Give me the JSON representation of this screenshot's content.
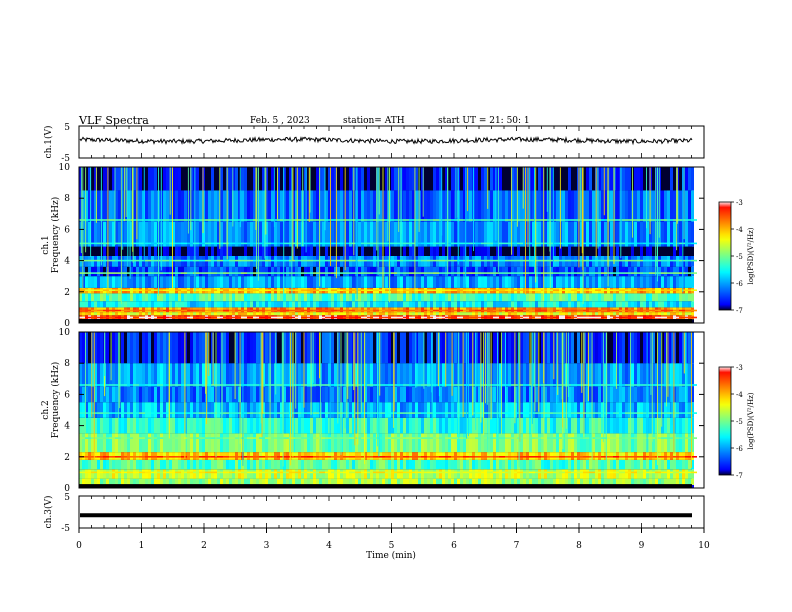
{
  "header": {
    "title": "VLF  Spectra",
    "date": "Feb. 5  , 2023",
    "station": "station= ATH",
    "start": "start  UT  =    21: 50: 1"
  },
  "chart_data": [
    {
      "type": "line",
      "panel": "ch1-waveform",
      "ylabel": "ch.1(V)",
      "yticks": [
        "5",
        "-5"
      ],
      "ylim": [
        -5,
        5
      ],
      "xlim": [
        0,
        10
      ],
      "baseline_value": 0.5,
      "series": [
        {
          "values_note": "",
          "color": "#000000"
        }
      ]
    },
    {
      "type": "heatmap",
      "panel": "ch1-spectrogram",
      "ylabel": "ch.1\nFrequency (kHz)",
      "ylabel_line1": "ch.1",
      "ylabel_line2": "Frequency (kHz)",
      "yticks": [
        "0",
        "2",
        "4",
        "6",
        "8",
        "10"
      ],
      "ylim": [
        0,
        10
      ],
      "xlim": [
        0,
        9.8
      ],
      "colorbar": {
        "label": "log(PSD)(V²/Hz)",
        "ticks": [
          "-3",
          "-4",
          "-5",
          "-6",
          "-7"
        ],
        "range": [
          -7,
          -3
        ]
      },
      "bands": [
        {
          "f": [
            0.0,
            0.25
          ],
          "level": -7.0
        },
        {
          "f": [
            0.25,
            0.5
          ],
          "level": -3.4
        },
        {
          "f": [
            0.5,
            0.7
          ],
          "level": -4.3
        },
        {
          "f": [
            0.7,
            1.0
          ],
          "level": -3.8
        },
        {
          "f": [
            1.0,
            1.4
          ],
          "level": -5.6
        },
        {
          "f": [
            1.4,
            1.9
          ],
          "level": -5.2
        },
        {
          "f": [
            1.9,
            2.25
          ],
          "level": -4.0
        },
        {
          "f": [
            2.25,
            3.0
          ],
          "level": -6.0
        },
        {
          "f": [
            3.0,
            3.6
          ],
          "level": -6.5
        },
        {
          "f": [
            3.6,
            4.3
          ],
          "level": -6.2
        },
        {
          "f": [
            4.3,
            4.9
          ],
          "level": -7.0
        },
        {
          "f": [
            4.9,
            6.5
          ],
          "level": -6.1
        },
        {
          "f": [
            6.5,
            8.5
          ],
          "level": -6.3
        },
        {
          "f": [
            8.5,
            10.0
          ],
          "level": -6.8
        }
      ],
      "lines": [
        {
          "f": 0.35,
          "level": -3.2
        },
        {
          "f": 0.8,
          "level": -3.6
        },
        {
          "f": 2.1,
          "level": -4.2
        },
        {
          "f": 3.2,
          "level": -5.0
        },
        {
          "f": 4.0,
          "level": -5.2
        },
        {
          "f": 5.1,
          "level": -5.5
        },
        {
          "f": 6.6,
          "level": -5.2
        }
      ]
    },
    {
      "type": "heatmap",
      "panel": "ch2-spectrogram",
      "ylabel_line1": "ch.2",
      "ylabel_line2": "Frequency (kHz)",
      "yticks": [
        "0",
        "2",
        "4",
        "6",
        "8",
        "10"
      ],
      "ylim": [
        0,
        10
      ],
      "xlim": [
        0,
        9.8
      ],
      "colorbar": {
        "label": "log(PSD)(V²/Hz)",
        "ticks": [
          "-3",
          "-4",
          "-5",
          "-6",
          "-7"
        ],
        "range": [
          -7,
          -3
        ]
      },
      "bands": [
        {
          "f": [
            0.0,
            0.2
          ],
          "level": -7.0
        },
        {
          "f": [
            0.2,
            0.6
          ],
          "level": -4.8
        },
        {
          "f": [
            0.6,
            1.2
          ],
          "level": -4.6
        },
        {
          "f": [
            1.2,
            1.8
          ],
          "level": -5.2
        },
        {
          "f": [
            1.8,
            2.3
          ],
          "level": -4.1
        },
        {
          "f": [
            2.3,
            3.5
          ],
          "level": -5.0
        },
        {
          "f": [
            3.5,
            4.5
          ],
          "level": -5.4
        },
        {
          "f": [
            4.5,
            5.5
          ],
          "level": -5.9
        },
        {
          "f": [
            5.5,
            6.5
          ],
          "level": -6.2
        },
        {
          "f": [
            6.5,
            8.0
          ],
          "level": -6.0
        },
        {
          "f": [
            8.0,
            10.0
          ],
          "level": -6.6
        }
      ],
      "lines": [
        {
          "f": 2.0,
          "level": -3.4
        },
        {
          "f": 1.0,
          "level": -4.4
        },
        {
          "f": 3.2,
          "level": -5.0
        },
        {
          "f": 4.8,
          "level": -5.3
        },
        {
          "f": 6.6,
          "level": -5.4
        }
      ]
    },
    {
      "type": "line",
      "panel": "ch3-waveform",
      "ylabel": "ch.3(V)",
      "yticks": [
        "5",
        "-5"
      ],
      "ylim": [
        -5,
        5
      ],
      "xlim": [
        0,
        10
      ],
      "baseline_value": -1.0,
      "series": [
        {
          "color": "#000000"
        }
      ]
    }
  ],
  "xaxis": {
    "label": "Time  (min)",
    "ticks": [
      "0",
      "1",
      "2",
      "3",
      "4",
      "5",
      "6",
      "7",
      "8",
      "9",
      "10"
    ]
  },
  "colors": {
    "line": "#000000",
    "frame": "#000000"
  }
}
